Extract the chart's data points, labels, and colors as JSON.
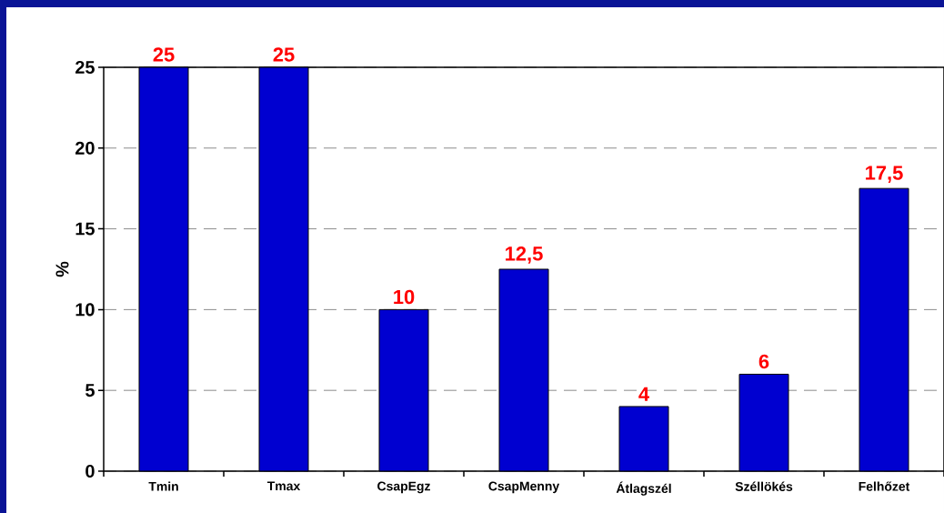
{
  "chart_data": {
    "type": "bar",
    "ylabel": "%",
    "categories": [
      "Tmin",
      "Tmax",
      "CsapEgz",
      "CsapMenny",
      "Átlagszél",
      "Széllökés",
      "Felhőzet"
    ],
    "values": [
      25,
      25,
      10,
      12.5,
      4,
      6,
      17.5
    ],
    "value_labels": [
      "25",
      "25",
      "10",
      "12,5",
      "4",
      "6",
      "17,5"
    ],
    "color": "#0000d0",
    "ylim": [
      0,
      25
    ],
    "yticks": [
      0,
      5,
      10,
      15,
      20,
      25
    ],
    "grid": "y"
  }
}
